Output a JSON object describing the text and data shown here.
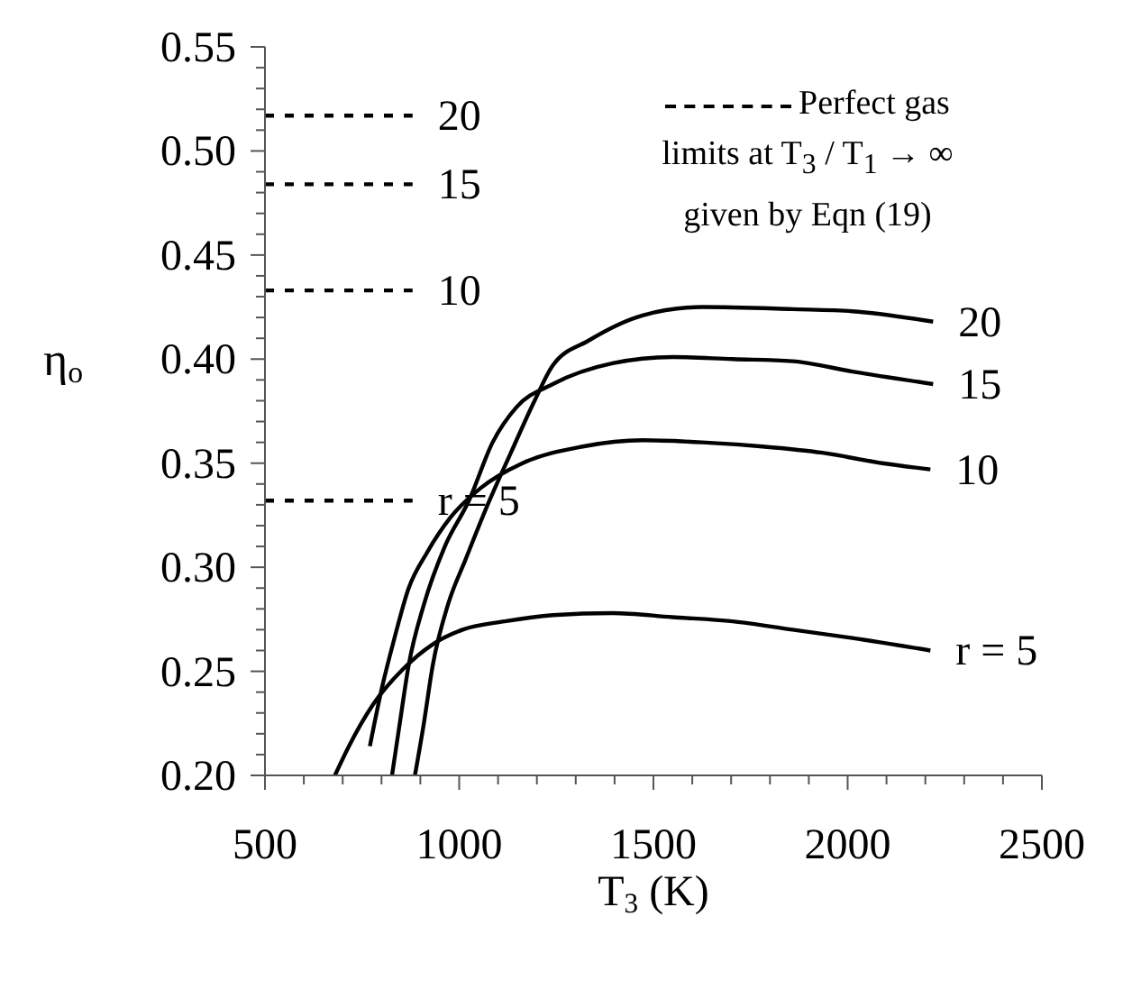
{
  "chart_data": {
    "type": "line",
    "xlabel": "T$_{3}$ (K)",
    "ylabel": "η$_{o}$",
    "xlim": [
      500,
      2500
    ],
    "ylim": [
      0.2,
      0.55
    ],
    "xticks": [
      500,
      {
        "value": 600,
        "label": null
      },
      {
        "value": 700,
        "label": null
      },
      {
        "value": 800,
        "label": null
      },
      {
        "value": 900,
        "label": null
      },
      1000,
      {
        "value": 1100,
        "label": null
      },
      {
        "value": 1200,
        "label": null
      },
      {
        "value": 1300,
        "label": null
      },
      {
        "value": 1400,
        "label": null
      },
      1500,
      {
        "value": 1600,
        "label": null
      },
      {
        "value": 1700,
        "label": null
      },
      {
        "value": 1800,
        "label": null
      },
      {
        "value": 1900,
        "label": null
      },
      2000,
      {
        "value": 2100,
        "label": null
      },
      {
        "value": 2200,
        "label": null
      },
      {
        "value": 2300,
        "label": null
      },
      {
        "value": 2400,
        "label": null
      },
      2500
    ],
    "yticks": [
      {
        "value": 0.2,
        "label": "0.20"
      },
      {
        "value": 0.21,
        "label": null
      },
      {
        "value": 0.22,
        "label": null
      },
      {
        "value": 0.23,
        "label": null
      },
      {
        "value": 0.24,
        "label": null
      },
      0.25,
      {
        "value": 0.26,
        "label": null
      },
      {
        "value": 0.27,
        "label": null
      },
      {
        "value": 0.28,
        "label": null
      },
      {
        "value": 0.29,
        "label": null
      },
      {
        "value": 0.3,
        "label": "0.30"
      },
      {
        "value": 0.31,
        "label": null
      },
      {
        "value": 0.32,
        "label": null
      },
      {
        "value": 0.33,
        "label": null
      },
      {
        "value": 0.34,
        "label": null
      },
      0.35,
      {
        "value": 0.36,
        "label": null
      },
      {
        "value": 0.37,
        "label": null
      },
      {
        "value": 0.38,
        "label": null
      },
      {
        "value": 0.39,
        "label": null
      },
      {
        "value": 0.4,
        "label": "0.40"
      },
      {
        "value": 0.41,
        "label": null
      },
      {
        "value": 0.42,
        "label": null
      },
      {
        "value": 0.43,
        "label": null
      },
      {
        "value": 0.44,
        "label": null
      },
      0.45,
      {
        "value": 0.46,
        "label": null
      },
      {
        "value": 0.47,
        "label": null
      },
      {
        "value": 0.48,
        "label": null
      },
      {
        "value": 0.49,
        "label": null
      },
      {
        "value": 0.5,
        "label": "0.50"
      },
      {
        "value": 0.51,
        "label": null
      },
      {
        "value": 0.52,
        "label": null
      },
      {
        "value": 0.53,
        "label": null
      },
      {
        "value": 0.54,
        "label": null
      },
      0.55
    ],
    "marker": "none",
    "series": [
      {
        "name": "r = 5",
        "color": "#000000",
        "line_style": "solid",
        "x": [
          680,
          716,
          778,
          855,
          932,
          1009,
          1117,
          1241,
          1395,
          1549,
          1704,
          1858,
          2012,
          2213
        ],
        "values": [
          0.2,
          0.214,
          0.234,
          0.251,
          0.263,
          0.27,
          0.274,
          0.277,
          0.278,
          0.276,
          0.274,
          0.27,
          0.266,
          0.26
        ]
      },
      {
        "name": "10",
        "color": "#000000",
        "line_style": "solid",
        "x": [
          770,
          801,
          832,
          870,
          917,
          978,
          1055,
          1163,
          1318,
          1472,
          1626,
          1781,
          1935,
          2089,
          2213
        ],
        "values": [
          0.214,
          0.242,
          0.265,
          0.29,
          0.307,
          0.324,
          0.338,
          0.35,
          0.358,
          0.361,
          0.36,
          0.358,
          0.355,
          0.35,
          0.347
        ]
      },
      {
        "name": "15",
        "color": "#000000",
        "line_style": "solid",
        "x": [
          827,
          847,
          870,
          909,
          963,
          1025,
          1086,
          1148,
          1241,
          1395,
          1549,
          1704,
          1858,
          2012,
          2220
        ],
        "values": [
          0.2,
          0.225,
          0.253,
          0.282,
          0.31,
          0.332,
          0.36,
          0.377,
          0.388,
          0.398,
          0.401,
          0.4,
          0.399,
          0.394,
          0.388
        ]
      },
      {
        "name": "20",
        "color": "#000000",
        "line_style": "solid",
        "x": [
          886,
          909,
          932,
          971,
          1017,
          1071,
          1133,
          1194,
          1241,
          1334,
          1472,
          1626,
          1858,
          2012,
          2220
        ],
        "values": [
          0.2,
          0.225,
          0.253,
          0.282,
          0.304,
          0.329,
          0.355,
          0.38,
          0.397,
          0.409,
          0.421,
          0.425,
          0.424,
          0.423,
          0.418
        ]
      },
      {
        "name": "r = 5",
        "color": "#000000",
        "line_style": "dashed",
        "x": [
          500,
          880
        ],
        "values": [
          0.332,
          0.332
        ]
      },
      {
        "name": "10",
        "color": "#000000",
        "line_style": "dashed",
        "x": [
          500,
          880
        ],
        "values": [
          0.433,
          0.433
        ]
      },
      {
        "name": "15",
        "color": "#000000",
        "line_style": "dashed",
        "x": [
          500,
          880
        ],
        "values": [
          0.484,
          0.484
        ]
      },
      {
        "name": "20",
        "color": "#000000",
        "line_style": "dashed",
        "x": [
          500,
          880
        ],
        "values": [
          0.517,
          0.517
        ]
      }
    ],
    "annotations": [
      "Perfect gas limits at T$_{3}$ / T$_{1}$ → ∞ given by Eqn (19)"
    ]
  }
}
